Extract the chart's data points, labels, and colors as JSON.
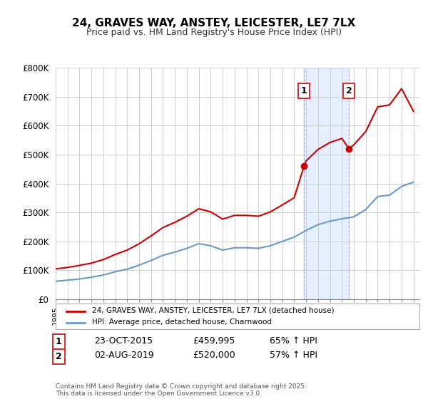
{
  "title": "24, GRAVES WAY, ANSTEY, LEICESTER, LE7 7LX",
  "subtitle": "Price paid vs. HM Land Registry's House Price Index (HPI)",
  "ylabel_ticks": [
    "£0",
    "£100K",
    "£200K",
    "£300K",
    "£400K",
    "£500K",
    "£600K",
    "£700K",
    "£800K"
  ],
  "ytick_values": [
    0,
    100000,
    200000,
    300000,
    400000,
    500000,
    600000,
    700000,
    800000
  ],
  "ylim": [
    0,
    800000
  ],
  "legend_line1": "24, GRAVES WAY, ANSTEY, LEICESTER, LE7 7LX (detached house)",
  "legend_line2": "HPI: Average price, detached house, Charnwood",
  "line1_color": "#cc0000",
  "line2_color": "#6699cc",
  "marker1_color": "#cc0000",
  "transaction1": {
    "date": "23-OCT-2015",
    "price": "£459,995",
    "change": "65% ↑ HPI",
    "label": "1"
  },
  "transaction2": {
    "date": "02-AUG-2019",
    "price": "£520,000",
    "change": "57% ↑ HPI",
    "label": "2"
  },
  "footnote": "Contains HM Land Registry data © Crown copyright and database right 2025.\nThis data is licensed under the Open Government Licence v3.0.",
  "shading_x1": 2015.8,
  "shading_x2": 2019.6,
  "background_color": "#ffffff",
  "grid_color": "#cccccc",
  "hpi_years": [
    1995,
    1996,
    1997,
    1998,
    1999,
    2000,
    2001,
    2002,
    2003,
    2004,
    2005,
    2006,
    2007,
    2008,
    2009,
    2010,
    2011,
    2012,
    2013,
    2014,
    2015,
    2016,
    2017,
    2018,
    2019,
    2020,
    2021,
    2022,
    2023,
    2024,
    2025
  ],
  "hpi_values": [
    62000,
    66000,
    70000,
    76000,
    84000,
    95000,
    104000,
    118000,
    134000,
    152000,
    163000,
    176000,
    192000,
    185000,
    170000,
    178000,
    178000,
    176000,
    185000,
    200000,
    215000,
    238000,
    258000,
    270000,
    278000,
    285000,
    310000,
    355000,
    360000,
    390000,
    405000
  ],
  "property_years": [
    1995,
    1996,
    1997,
    1998,
    1999,
    2000,
    2001,
    2002,
    2003,
    2004,
    2005,
    2006,
    2007,
    2008,
    2009,
    2010,
    2011,
    2012,
    2013,
    2014,
    2015,
    2015.82,
    2016,
    2017,
    2018,
    2019,
    2019.59,
    2020,
    2021,
    2022,
    2023,
    2024,
    2025
  ],
  "property_values": [
    105000,
    110000,
    117000,
    125000,
    137000,
    155000,
    170000,
    192000,
    219000,
    248000,
    266000,
    287000,
    313000,
    302000,
    277000,
    290000,
    290000,
    287000,
    302000,
    326000,
    351000,
    459995,
    478000,
    518000,
    542000,
    556000,
    520000,
    534000,
    580000,
    665000,
    672000,
    728000,
    650000
  ],
  "xmin": 1995,
  "xmax": 2025.5
}
